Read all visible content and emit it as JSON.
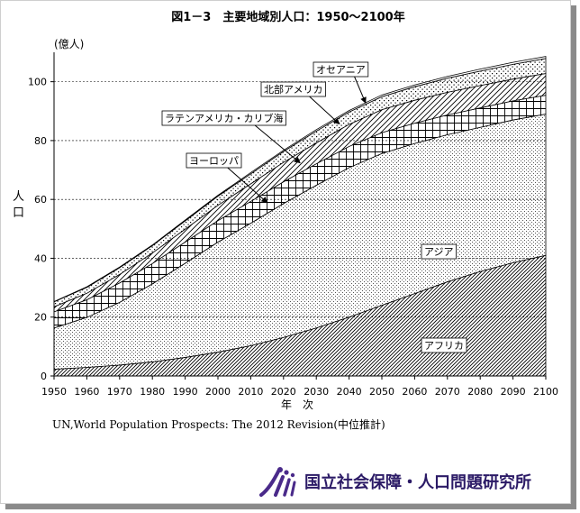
{
  "chart_data": {
    "type": "area",
    "stacked": true,
    "title": "図1－3　主要地域別人口：1950～2100年",
    "ylabel": "人口",
    "yunit": "(億人)",
    "xlabel": "年　次",
    "ylim": [
      0,
      110
    ],
    "xlim": [
      1950,
      2100
    ],
    "yticks": [
      0,
      20,
      40,
      60,
      80,
      100
    ],
    "xticks": [
      1950,
      1960,
      1970,
      1980,
      1990,
      2000,
      2010,
      2020,
      2030,
      2040,
      2050,
      2060,
      2070,
      2080,
      2090,
      2100
    ],
    "grid": "horizontal dashed",
    "x": [
      1950,
      1960,
      1970,
      1980,
      1990,
      2000,
      2010,
      2020,
      2030,
      2040,
      2050,
      2060,
      2070,
      2080,
      2090,
      2100
    ],
    "series": [
      {
        "name": "アフリカ",
        "values": [
          2.3,
          2.9,
          3.7,
          4.8,
          6.3,
          8.1,
          10.3,
          13.1,
          16.3,
          20.0,
          24.0,
          28.0,
          32.0,
          35.5,
          38.5,
          41.0
        ]
      },
      {
        "name": "アジア",
        "values": [
          14.0,
          17.0,
          21.3,
          26.5,
          32.0,
          37.4,
          41.6,
          45.5,
          48.5,
          50.8,
          51.6,
          51.0,
          50.0,
          49.0,
          48.5,
          48.0
        ]
      },
      {
        "name": "ヨーロッパ",
        "values": [
          5.5,
          6.0,
          6.6,
          6.9,
          7.2,
          7.3,
          7.4,
          7.4,
          7.3,
          7.2,
          7.1,
          6.9,
          6.7,
          6.6,
          6.5,
          6.4
        ]
      },
      {
        "name": "ラテンアメリカ・カリブ海",
        "values": [
          1.7,
          2.2,
          2.9,
          3.6,
          4.4,
          5.2,
          6.0,
          6.6,
          7.1,
          7.5,
          7.8,
          7.8,
          7.7,
          7.6,
          7.4,
          7.4
        ]
      },
      {
        "name": "北部アメリカ",
        "values": [
          1.7,
          2.0,
          2.3,
          2.5,
          2.8,
          3.1,
          3.4,
          3.7,
          4.0,
          4.2,
          4.4,
          4.6,
          4.8,
          4.9,
          5.0,
          5.1
        ]
      },
      {
        "name": "オセアニア",
        "values": [
          0.1,
          0.2,
          0.2,
          0.2,
          0.3,
          0.3,
          0.4,
          0.4,
          0.5,
          0.5,
          0.6,
          0.6,
          0.6,
          0.7,
          0.7,
          0.7
        ]
      }
    ],
    "annotations": [
      {
        "series": "アフリカ",
        "text": "アフリカ",
        "boxed": true
      },
      {
        "series": "アジア",
        "text": "アジア",
        "boxed": true
      },
      {
        "series": "ヨーロッパ",
        "text": "ヨーロッパ",
        "boxed": true,
        "arrow": true
      },
      {
        "series": "ラテンアメリカ・カリブ海",
        "text": "ラテンアメリカ・カリブ海",
        "boxed": true,
        "arrow": true
      },
      {
        "series": "北部アメリカ",
        "text": "北部アメリカ",
        "boxed": true,
        "arrow": true
      },
      {
        "series": "オセアニア",
        "text": "オセアニア",
        "boxed": true,
        "arrow": true
      }
    ]
  },
  "source_note": "UN,World Population Prospects: The 2012 Revision(中位推計)",
  "logo": {
    "name": "国立社会保障・人口問題研究所",
    "mark_color": "#4a2a8a"
  }
}
